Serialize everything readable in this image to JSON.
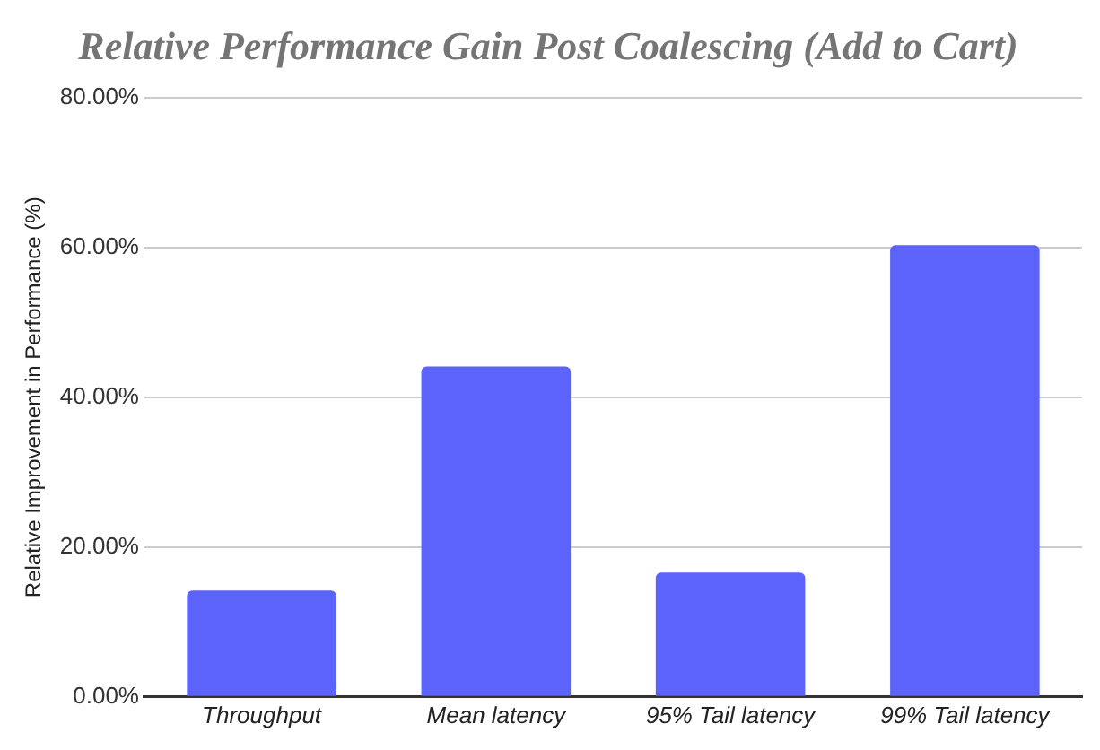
{
  "chart_data": {
    "type": "bar",
    "title": "Relative Performance Gain Post Coalescing (Add to Cart)",
    "ylabel": "Relative Improvement in Performance (%)",
    "categories": [
      "Throughput",
      "Mean latency",
      "95% Tail latency",
      "99% Tail latency"
    ],
    "values": [
      14.2,
      44.1,
      16.6,
      60.3
    ],
    "color": "#5b63fa",
    "ylim": [
      0,
      80
    ],
    "yticks": [
      {
        "value": 0,
        "label": "0.00%"
      },
      {
        "value": 20,
        "label": "20.00%"
      },
      {
        "value": 40,
        "label": "40.00%"
      },
      {
        "value": 60,
        "label": "60.00%"
      },
      {
        "value": 80,
        "label": "80.00%"
      }
    ],
    "grid": "y",
    "legend": false
  }
}
